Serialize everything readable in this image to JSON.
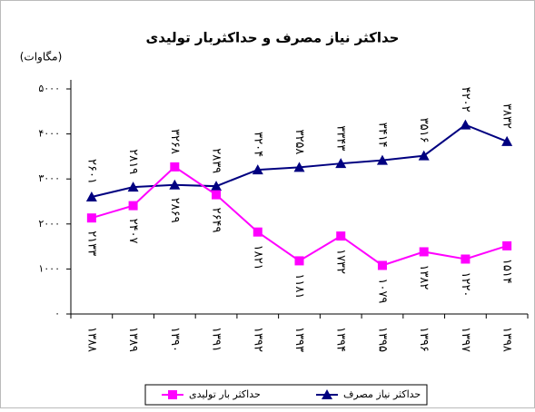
{
  "chart_data": {
    "type": "line",
    "title": "حداکثر نیاز مصرف و حداکثربار تولیدی",
    "y_label": "(مگاوات)",
    "categories": [
      "۱۳۸۸",
      "۱۳۸۹",
      "۱۳۹۰",
      "۱۳۹۱",
      "۱۳۹۲",
      "۱۳۹۳",
      "۱۳۹۴",
      "۱۳۹۵",
      "۱۳۹۶",
      "۱۳۹۷",
      "۱۳۹۸"
    ],
    "series": [
      {
        "name": "حداکثر نیاز مصرف",
        "color": "#000080",
        "marker": "triangle",
        "values": [
          2601,
          2819,
          2869,
          2839,
          3204,
          3258,
          3343,
          3414,
          3516,
          4202,
          3832
        ],
        "value_labels": [
          "۲۶۰۱",
          "۲۸۱۹",
          "۲۸۶۹",
          "۲۸۳۹",
          "۳۲۰۴",
          "۳۲۵۸",
          "۳۳۴۳",
          "۳۴۱۴",
          "۳۵۱۶",
          "۴۲۰۲",
          "۳۸۳۲"
        ]
      },
      {
        "name": "حداکثر بار تولیدی",
        "color": "#ff00ff",
        "marker": "square",
        "values": [
          2133,
          2407,
          3268,
          2649,
          1821,
          1181,
          1732,
          1079,
          1382,
          1220,
          1514
        ],
        "value_labels": [
          "۲۱۳۳",
          "۲۴۰۷",
          "۳۲۶۸",
          "۲۶۴۹",
          "۱۸۲۱",
          "۱۱۸۱",
          "۱۷۳۲",
          "۱۰۷۹",
          "۱۳۸۲",
          "۱۲۲۰",
          "۱۵۱۴"
        ]
      }
    ],
    "ylim": [
      0,
      5000
    ],
    "yticks": [
      {
        "value": 0,
        "label": "۰"
      },
      {
        "value": 1000,
        "label": "۱۰۰۰"
      },
      {
        "value": 2000,
        "label": "۲۰۰۰"
      },
      {
        "value": 3000,
        "label": "۳۰۰۰"
      },
      {
        "value": 4000,
        "label": "۴۰۰۰"
      },
      {
        "value": 5000,
        "label": "۵۰۰۰"
      }
    ],
    "legend": "bottom"
  }
}
